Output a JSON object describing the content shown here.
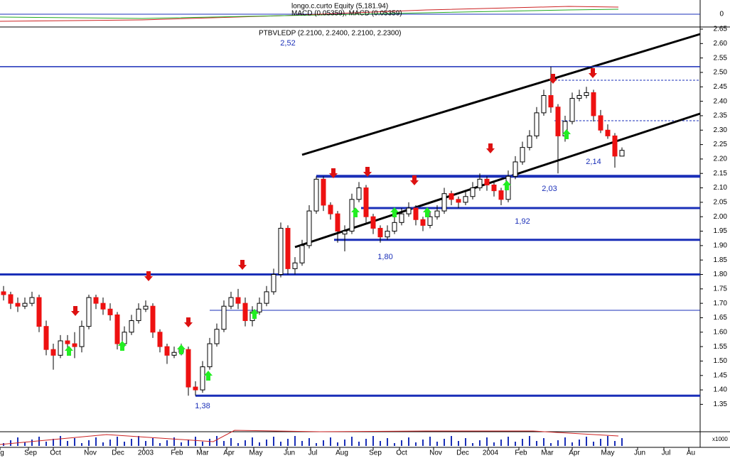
{
  "header": {
    "equity": "longo.c.curto Equity (5,181.94)",
    "macd": "MACD (0.05359), MACD (0.05359)",
    "x_unit": "x1000"
  },
  "top_panel": {
    "yticks": [
      0
    ]
  },
  "chart_data": {
    "type": "candlestick",
    "title": "PTBVLEDP (2.2100, 2.2400, 2.2100, 2.2300)",
    "xlabels": [
      "g",
      "Sep",
      "Oct",
      "Nov",
      "Dec",
      "2003",
      "Feb",
      "Mar",
      "Apr",
      "May",
      "Jun",
      "Jul",
      "Aug",
      "Sep",
      "Oct",
      "Nov",
      "Dec",
      "2004",
      "Feb",
      "Mar",
      "Apr",
      "May",
      "Jun",
      "Jul",
      "Au"
    ],
    "ylim": [
      1.26,
      2.65
    ],
    "yticks": [
      2.65,
      {
        "value": 2.6,
        "label": "2.60"
      },
      2.55,
      {
        "value": 2.5,
        "label": "2.50"
      },
      2.45,
      {
        "value": 2.4,
        "label": "2.40"
      },
      2.35,
      {
        "value": 2.3,
        "label": "2.30"
      },
      2.25,
      {
        "value": 2.2,
        "label": "2.20"
      },
      2.15,
      {
        "value": 2.1,
        "label": "2.10"
      },
      2.05,
      {
        "value": 2,
        "label": "2.00"
      },
      1.95,
      {
        "value": 1.9,
        "label": "1.90"
      },
      1.85,
      {
        "value": 1.8,
        "label": "1.80"
      },
      1.75,
      {
        "value": 1.7,
        "label": "1.70"
      },
      1.65,
      {
        "value": 1.6,
        "label": "1.60"
      },
      1.55,
      {
        "value": 1.5,
        "label": "1.50"
      },
      1.45,
      {
        "value": 1.4,
        "label": "1.40"
      },
      1.35
    ],
    "levels": [
      {
        "value": 2.52,
        "label": "2,52"
      },
      {
        "value": 2.14,
        "label": "2,14"
      },
      {
        "value": 2.03,
        "label": "2,03"
      },
      {
        "value": 1.92,
        "label": "1,92"
      },
      {
        "value": 1.8,
        "label": "1,80"
      },
      {
        "value": 1.38,
        "label": "1,38"
      }
    ],
    "up_color": "#ffffff",
    "down_color": "#ee1111",
    "level_color": "#1a2fb8",
    "ohlc": [
      [
        1.74,
        1.76,
        1.71,
        1.73
      ],
      [
        1.73,
        1.74,
        1.68,
        1.7
      ],
      [
        1.7,
        1.72,
        1.67,
        1.69
      ],
      [
        1.69,
        1.72,
        1.68,
        1.7
      ],
      [
        1.7,
        1.74,
        1.69,
        1.72
      ],
      [
        1.72,
        1.73,
        1.6,
        1.62
      ],
      [
        1.62,
        1.64,
        1.52,
        1.54
      ],
      [
        1.54,
        1.56,
        1.47,
        1.52
      ],
      [
        1.52,
        1.59,
        1.51,
        1.57
      ],
      [
        1.57,
        1.59,
        1.54,
        1.56
      ],
      [
        1.56,
        1.6,
        1.51,
        1.55
      ],
      [
        1.55,
        1.64,
        1.53,
        1.62
      ],
      [
        1.62,
        1.73,
        1.61,
        1.72
      ],
      [
        1.72,
        1.73,
        1.68,
        1.7
      ],
      [
        1.7,
        1.72,
        1.66,
        1.68
      ],
      [
        1.68,
        1.7,
        1.64,
        1.66
      ],
      [
        1.66,
        1.67,
        1.54,
        1.56
      ],
      [
        1.56,
        1.62,
        1.55,
        1.6
      ],
      [
        1.6,
        1.66,
        1.59,
        1.64
      ],
      [
        1.64,
        1.7,
        1.63,
        1.68
      ],
      [
        1.68,
        1.71,
        1.67,
        1.69
      ],
      [
        1.69,
        1.7,
        1.58,
        1.6
      ],
      [
        1.6,
        1.61,
        1.53,
        1.55
      ],
      [
        1.55,
        1.56,
        1.49,
        1.52
      ],
      [
        1.52,
        1.55,
        1.51,
        1.53
      ],
      [
        1.53,
        1.56,
        1.52,
        1.54
      ],
      [
        1.54,
        1.55,
        1.38,
        1.41
      ],
      [
        1.41,
        1.43,
        1.38,
        1.4
      ],
      [
        1.4,
        1.5,
        1.39,
        1.48
      ],
      [
        1.48,
        1.58,
        1.47,
        1.56
      ],
      [
        1.56,
        1.63,
        1.55,
        1.61
      ],
      [
        1.61,
        1.71,
        1.6,
        1.69
      ],
      [
        1.69,
        1.74,
        1.68,
        1.72
      ],
      [
        1.72,
        1.75,
        1.68,
        1.7
      ],
      [
        1.7,
        1.72,
        1.62,
        1.64
      ],
      [
        1.64,
        1.69,
        1.62,
        1.67
      ],
      [
        1.67,
        1.72,
        1.66,
        1.7
      ],
      [
        1.7,
        1.76,
        1.69,
        1.74
      ],
      [
        1.74,
        1.82,
        1.73,
        1.8
      ],
      [
        1.8,
        1.98,
        1.79,
        1.96
      ],
      [
        1.96,
        1.97,
        1.8,
        1.82
      ],
      [
        1.82,
        1.86,
        1.8,
        1.84
      ],
      [
        1.84,
        1.92,
        1.83,
        1.9
      ],
      [
        1.9,
        2.04,
        1.89,
        2.02
      ],
      [
        2.02,
        2.14,
        2.01,
        2.13
      ],
      [
        2.13,
        2.14,
        2.02,
        2.04
      ],
      [
        2.04,
        2.05,
        1.99,
        2.01
      ],
      [
        2.01,
        2.02,
        1.91,
        1.95
      ],
      [
        1.94,
        1.97,
        1.88,
        1.95
      ],
      [
        1.95,
        2.08,
        1.94,
        2.06
      ],
      [
        2.06,
        2.12,
        2.05,
        2.1
      ],
      [
        2.1,
        2.11,
        1.98,
        2.0
      ],
      [
        2.0,
        2.01,
        1.94,
        1.96
      ],
      [
        1.96,
        1.97,
        1.91,
        1.93
      ],
      [
        1.93,
        1.97,
        1.92,
        1.95
      ],
      [
        1.95,
        2.0,
        1.94,
        1.98
      ],
      [
        1.98,
        2.03,
        1.97,
        2.01
      ],
      [
        2.01,
        2.05,
        2.0,
        2.03
      ],
      [
        2.03,
        2.04,
        1.97,
        1.99
      ],
      [
        1.99,
        2.0,
        1.95,
        1.97
      ],
      [
        1.97,
        2.02,
        1.96,
        2.0
      ],
      [
        2.0,
        2.04,
        1.99,
        2.02
      ],
      [
        2.02,
        2.1,
        2.01,
        2.08
      ],
      [
        2.08,
        2.09,
        2.04,
        2.06
      ],
      [
        2.06,
        2.07,
        2.03,
        2.05
      ],
      [
        2.05,
        2.09,
        2.04,
        2.07
      ],
      [
        2.07,
        2.12,
        2.06,
        2.1
      ],
      [
        2.1,
        2.15,
        2.09,
        2.13
      ],
      [
        2.13,
        2.14,
        2.09,
        2.11
      ],
      [
        2.11,
        2.12,
        2.07,
        2.09
      ],
      [
        2.09,
        2.1,
        2.04,
        2.06
      ],
      [
        2.06,
        2.16,
        2.05,
        2.14
      ],
      [
        2.14,
        2.21,
        2.13,
        2.19
      ],
      [
        2.19,
        2.26,
        2.18,
        2.24
      ],
      [
        2.24,
        2.3,
        2.23,
        2.28
      ],
      [
        2.28,
        2.38,
        2.27,
        2.36
      ],
      [
        2.36,
        2.44,
        2.35,
        2.42
      ],
      [
        2.42,
        2.52,
        2.36,
        2.38
      ],
      [
        2.38,
        2.39,
        2.15,
        2.28
      ],
      [
        2.28,
        2.35,
        2.26,
        2.33
      ],
      [
        2.33,
        2.43,
        2.32,
        2.41
      ],
      [
        2.41,
        2.44,
        2.4,
        2.42
      ],
      [
        2.42,
        2.45,
        2.41,
        2.43
      ],
      [
        2.43,
        2.44,
        2.33,
        2.35
      ],
      [
        2.35,
        2.37,
        2.29,
        2.3
      ],
      [
        2.3,
        2.32,
        2.27,
        2.28
      ],
      [
        2.28,
        2.29,
        2.17,
        2.21
      ],
      [
        2.21,
        2.24,
        2.21,
        2.23
      ]
    ]
  }
}
